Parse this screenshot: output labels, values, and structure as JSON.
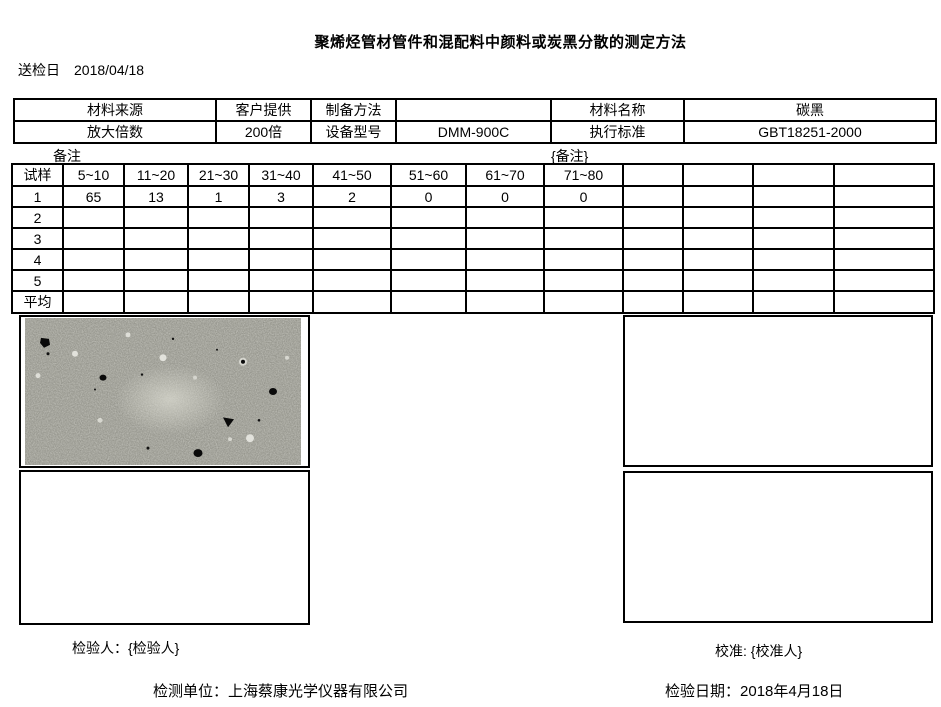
{
  "page": {
    "title": "聚烯烃管材管件和混配料中颜料或炭黑分散的测定方法",
    "submission_label": "送检日",
    "submission_date": "2018/04/18"
  },
  "info_table": {
    "rows": [
      [
        "材料来源",
        "客户提供",
        "制备方法",
        "",
        "材料名称",
        "碳黑"
      ],
      [
        "放大倍数",
        "200倍",
        "设备型号",
        "DMM-900C",
        "执行标准",
        "GBT18251-2000"
      ]
    ]
  },
  "remark": {
    "label": "备注",
    "value": "{备注}"
  },
  "data_table": {
    "headers": [
      "试样",
      "5~10",
      "11~20",
      "21~30",
      "31~40",
      "41~50",
      "51~60",
      "61~70",
      "71~80",
      "",
      "",
      "",
      ""
    ],
    "rows": [
      [
        "1",
        "65",
        "13",
        "1",
        "3",
        "2",
        "0",
        "0",
        "0",
        "",
        "",
        "",
        ""
      ],
      [
        "2",
        "",
        "",
        "",
        "",
        "",
        "",
        "",
        "",
        "",
        "",
        "",
        ""
      ],
      [
        "3",
        "",
        "",
        "",
        "",
        "",
        "",
        "",
        "",
        "",
        "",
        "",
        ""
      ],
      [
        "4",
        "",
        "",
        "",
        "",
        "",
        "",
        "",
        "",
        "",
        "",
        "",
        ""
      ],
      [
        "5",
        "",
        "",
        "",
        "",
        "",
        "",
        "",
        "",
        "",
        "",
        "",
        ""
      ],
      [
        "平均",
        "",
        "",
        "",
        "",
        "",
        "",
        "",
        "",
        "",
        "",
        "",
        ""
      ]
    ]
  },
  "signatures": {
    "inspector_label": "检验人：",
    "inspector_value": "{检验人}",
    "calibrator_label": "校准: ",
    "calibrator_value": "{校准人}",
    "organization_label": "检测单位：",
    "organization_value": "上海蔡康光学仪器有限公司",
    "inspection_date_label": "检验日期：",
    "inspection_date_value": "2018年4月18日"
  }
}
